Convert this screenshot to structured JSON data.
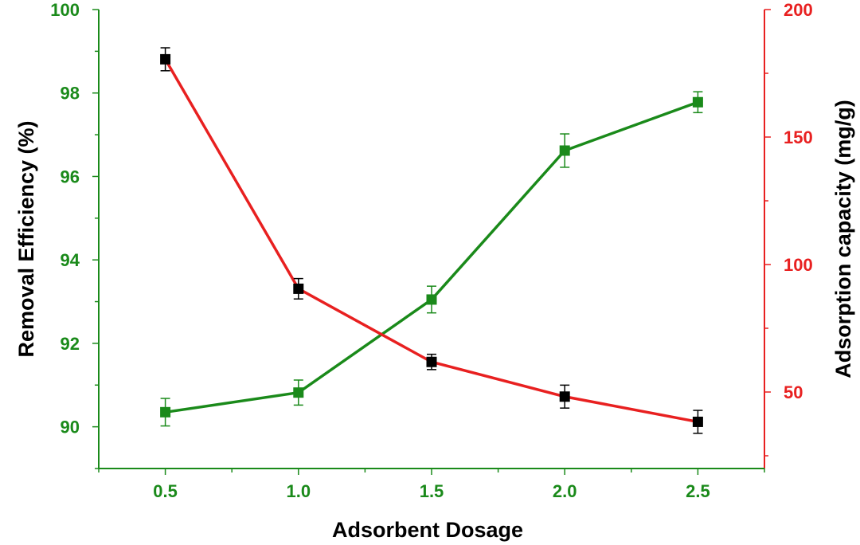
{
  "chart_data": {
    "type": "line",
    "title": "",
    "xlabel": "Adsorbent Dosage",
    "ylabel_left": "Removal Efficiency (%)",
    "ylabel_right": "Adsorption capacity (mg/g)",
    "x": [
      0.5,
      1.0,
      1.5,
      2.0,
      2.5
    ],
    "x_tick_labels": [
      "0.5",
      "1.0",
      "1.5",
      "2.0",
      "2.5"
    ],
    "xlim": [
      0.25,
      2.75
    ],
    "ylim_left": [
      89,
      100
    ],
    "ylim_right": [
      20,
      200
    ],
    "y_left_ticks": [
      "90",
      "92",
      "94",
      "96",
      "98",
      "100"
    ],
    "y_right_ticks": [
      "50",
      "100",
      "150",
      "200"
    ],
    "grid": false,
    "series": [
      {
        "name": "Removal Efficiency (%)",
        "axis": "left",
        "color": "#1a8a1a",
        "marker_color": "#1a8a1a",
        "values": [
          90.35,
          90.82,
          93.05,
          96.62,
          97.78
        ],
        "errors": [
          0.33,
          0.3,
          0.32,
          0.4,
          0.25
        ]
      },
      {
        "name": "Adsorption capacity (mg/g)",
        "axis": "right",
        "color": "#e82020",
        "marker_color": "#000000",
        "values": [
          180.5,
          90.5,
          61.8,
          48.2,
          38.3
        ],
        "errors": [
          4.5,
          4.0,
          3.0,
          4.5,
          4.5
        ]
      }
    ],
    "colors": {
      "left_axis": "#1a8a1a",
      "right_axis": "#e82020",
      "bottom_axis": "#1a8a1a"
    }
  }
}
